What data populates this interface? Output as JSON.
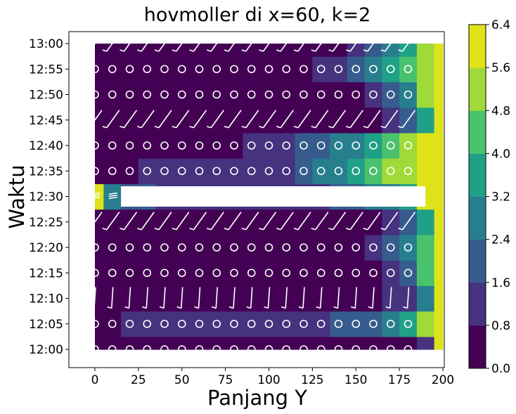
{
  "chart_data": {
    "type": "heatmap",
    "title": "hovmoller di x=60, k=2",
    "xlabel": "Panjang Y",
    "ylabel": "Waktu",
    "xlim": [
      -15,
      200
    ],
    "x_ticks": [
      "0",
      "25",
      "50",
      "75",
      "100",
      "125",
      "150",
      "175",
      "200"
    ],
    "y_tick_labels": [
      "12:00",
      "12:05",
      "12:10",
      "12:15",
      "12:20",
      "12:25",
      "12:30",
      "12:35",
      "12:40",
      "12:45",
      "12:50",
      "12:55",
      "13:00"
    ],
    "y_ticks_minutes": [
      0,
      5,
      10,
      15,
      20,
      25,
      30,
      35,
      40,
      45,
      50,
      55,
      60
    ],
    "colorbar": {
      "levels": [
        0.0,
        0.8,
        1.6,
        2.4,
        3.2,
        4.0,
        4.8,
        5.6,
        6.4
      ],
      "tick_labels": [
        "0.0",
        "0.8",
        "1.6",
        "2.4",
        "3.2",
        "4.0",
        "4.8",
        "5.6",
        "6.4"
      ],
      "colors": [
        "#440154",
        "#46327e",
        "#365c8d",
        "#277f8e",
        "#1fa187",
        "#4ac16d",
        "#a0da39",
        "#dde318"
      ]
    },
    "series": [
      {
        "kind": "filled_contour",
        "x_range": [
          0,
          200
        ],
        "time_range_minutes": [
          0,
          60
        ],
        "rows": [
          {
            "t": 0,
            "values": [
              0.4,
              0.4,
              0.4,
              0.4,
              0.4,
              0.4,
              0.4,
              0.4,
              0.4,
              0.4,
              0.4,
              0.4,
              0.4,
              0.4,
              0.4,
              0.4,
              0.4,
              0.4,
              0.5,
              1.2,
              6.2
            ]
          },
          {
            "t": 5,
            "values": [
              0.4,
              0.4,
              1.0,
              1.1,
              1.1,
              1.1,
              1.1,
              1.1,
              1.1,
              1.2,
              1.2,
              1.3,
              1.4,
              1.5,
              1.6,
              1.8,
              2.2,
              2.8,
              3.6,
              5.2,
              6.3
            ]
          },
          {
            "t": 10,
            "values": [
              0.3,
              0.3,
              0.3,
              0.3,
              0.3,
              0.3,
              0.3,
              0.3,
              0.3,
              0.3,
              0.3,
              0.3,
              0.4,
              0.4,
              0.4,
              0.5,
              0.6,
              0.8,
              1.4,
              3.0,
              6.3
            ]
          },
          {
            "t": 15,
            "values": [
              0.3,
              0.3,
              0.3,
              0.3,
              0.3,
              0.3,
              0.3,
              0.3,
              0.3,
              0.3,
              0.3,
              0.3,
              0.3,
              0.3,
              0.3,
              0.4,
              0.5,
              0.8,
              1.8,
              4.0,
              6.3
            ]
          },
          {
            "t": 20,
            "values": [
              0.4,
              0.4,
              0.4,
              0.4,
              0.4,
              0.4,
              0.4,
              0.4,
              0.4,
              0.4,
              0.4,
              0.4,
              0.4,
              0.4,
              0.5,
              0.6,
              1.0,
              1.8,
              2.8,
              4.6,
              6.3
            ]
          },
          {
            "t": 25,
            "values": [
              0.4,
              0.4,
              0.4,
              0.4,
              0.4,
              0.4,
              0.4,
              0.4,
              0.4,
              0.4,
              0.4,
              0.4,
              0.4,
              0.4,
              0.4,
              0.5,
              0.6,
              0.9,
              1.8,
              3.8,
              6.4
            ]
          },
          {
            "t": 30,
            "values": [
              5.6,
              3.0,
              2.0,
              1.6,
              1.5,
              1.4,
              1.4,
              1.4,
              1.4,
              1.4,
              1.4,
              1.4,
              1.4,
              1.5,
              1.6,
              1.8,
              2.4,
              3.0,
              3.8,
              5.6,
              6.4
            ]
          },
          {
            "t": 35,
            "values": [
              0.5,
              0.6,
              0.7,
              0.9,
              0.9,
              0.9,
              1.0,
              1.0,
              1.0,
              1.0,
              1.2,
              1.4,
              1.8,
              2.4,
              3.0,
              3.6,
              4.2,
              4.8,
              5.2,
              6.0,
              6.4
            ]
          },
          {
            "t": 40,
            "values": [
              0.4,
              0.4,
              0.4,
              0.4,
              0.4,
              0.4,
              0.4,
              0.4,
              0.4,
              0.9,
              1.0,
              1.3,
              1.7,
              2.1,
              2.6,
              3.0,
              3.6,
              4.2,
              4.8,
              5.6,
              6.4
            ]
          },
          {
            "t": 45,
            "values": [
              0.3,
              0.3,
              0.3,
              0.3,
              0.3,
              0.3,
              0.3,
              0.3,
              0.3,
              0.3,
              0.3,
              0.3,
              0.3,
              0.3,
              0.3,
              0.4,
              0.5,
              0.8,
              1.6,
              3.6,
              6.4
            ]
          },
          {
            "t": 50,
            "values": [
              0.4,
              0.4,
              0.4,
              0.4,
              0.4,
              0.4,
              0.4,
              0.4,
              0.4,
              0.4,
              0.4,
              0.4,
              0.4,
              0.5,
              0.5,
              0.7,
              1.0,
              1.8,
              3.0,
              4.8,
              6.4
            ]
          },
          {
            "t": 55,
            "values": [
              0.4,
              0.4,
              0.4,
              0.4,
              0.4,
              0.4,
              0.4,
              0.4,
              0.4,
              0.4,
              0.4,
              0.4,
              0.6,
              0.8,
              1.1,
              1.6,
              2.4,
              3.2,
              4.0,
              5.2,
              6.4
            ]
          },
          {
            "t": 60,
            "values": [
              0.4,
              0.4,
              0.4,
              0.4,
              0.4,
              0.4,
              0.4,
              0.4,
              0.4,
              0.4,
              0.4,
              0.4,
              0.4,
              0.5,
              0.6,
              0.9,
              1.6,
              2.5,
              3.6,
              5.0,
              6.4
            ]
          }
        ]
      },
      {
        "kind": "wind_barbs",
        "x_positions": [
          0,
          10,
          20,
          30,
          40,
          50,
          60,
          70,
          80,
          90,
          100,
          110,
          120,
          130,
          140,
          150,
          160,
          170,
          180
        ],
        "rows": [
          {
            "t": 0,
            "style": "calm"
          },
          {
            "t": 5,
            "style": "calm"
          },
          {
            "t": 10,
            "style": "barb_vertical"
          },
          {
            "t": 15,
            "style": "calm"
          },
          {
            "t": 20,
            "style": "calm"
          },
          {
            "t": 25,
            "style": "barb_diagonal"
          },
          {
            "t": 30,
            "style": "dense_barbs"
          },
          {
            "t": 35,
            "style": "calm"
          },
          {
            "t": 40,
            "style": "calm"
          },
          {
            "t": 45,
            "style": "barb_diagonal"
          },
          {
            "t": 50,
            "style": "calm"
          },
          {
            "t": 55,
            "style": "calm"
          },
          {
            "t": 60,
            "style": "barb_diagonal"
          }
        ]
      }
    ]
  }
}
